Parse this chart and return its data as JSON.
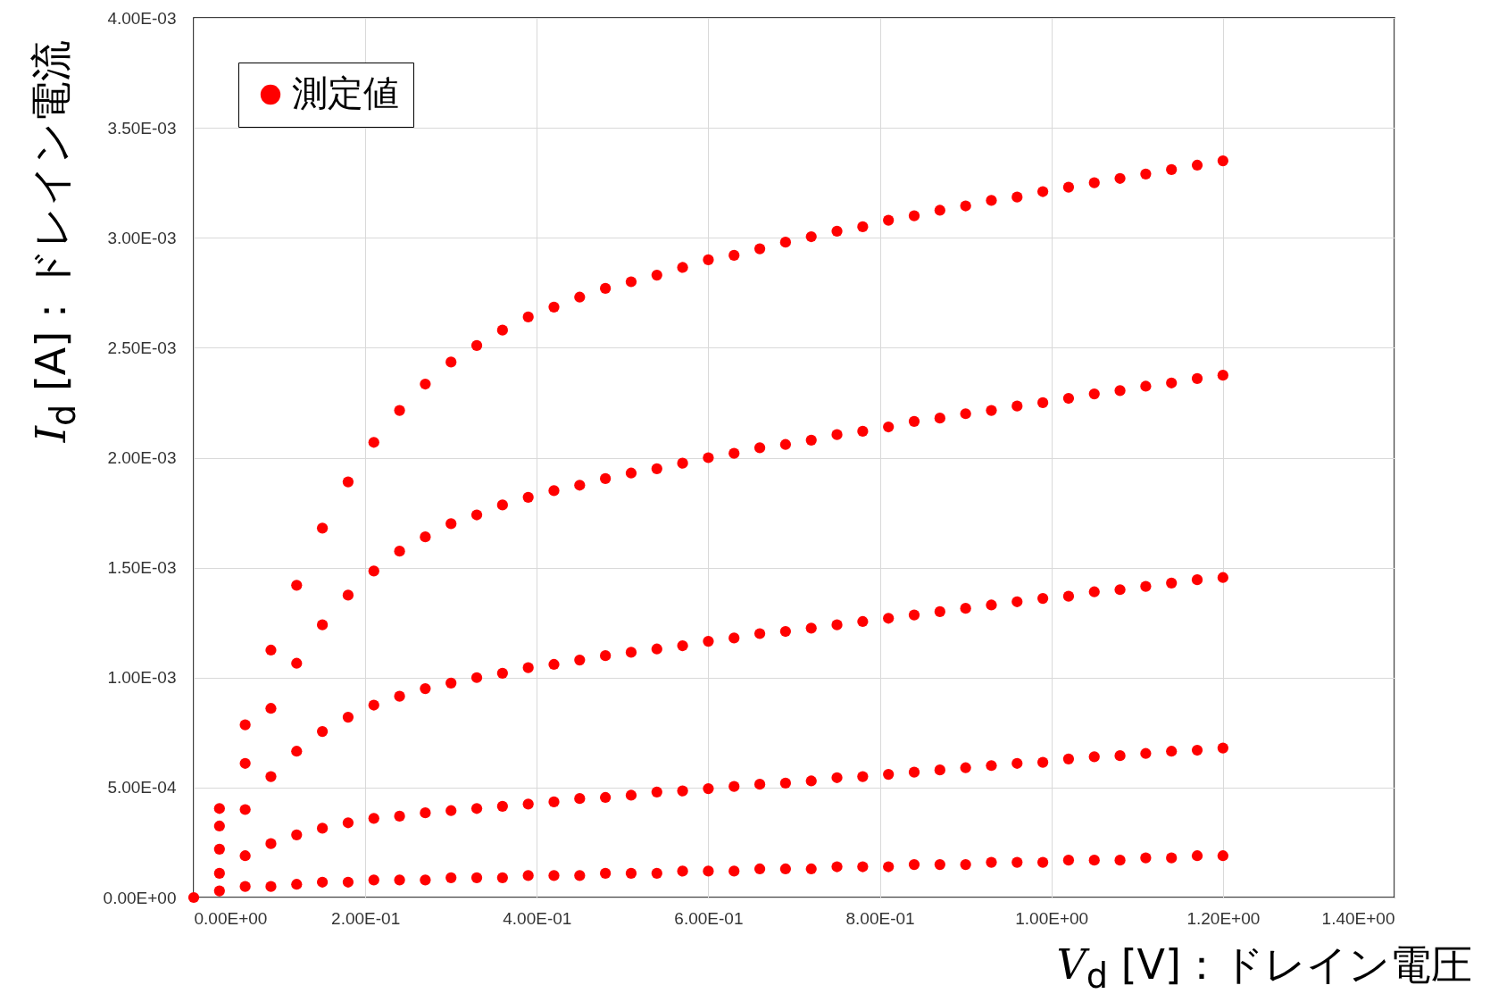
{
  "chart_data": {
    "type": "scatter",
    "xlabel": "V$_{d}$ [V]：ドレイン電圧",
    "ylabel": "I$_{d}$ [A]：ドレイン電流",
    "xlim": [
      0,
      1.4
    ],
    "ylim": [
      0,
      0.004
    ],
    "xticks": [
      {
        "value": 0,
        "label": "0.00E+00"
      },
      {
        "value": 0.2,
        "label": "2.00E-01"
      },
      {
        "value": 0.4,
        "label": "4.00E-01"
      },
      {
        "value": 0.6,
        "label": "6.00E-01"
      },
      {
        "value": 0.8,
        "label": "8.00E-01"
      },
      {
        "value": 1.0,
        "label": "1.00E+00"
      },
      {
        "value": 1.2,
        "label": "1.20E+00"
      },
      {
        "value": 1.4,
        "label": "1.40E+00"
      }
    ],
    "yticks": [
      {
        "value": 0,
        "label": "0.00E+00"
      },
      {
        "value": 0.0005,
        "label": "5.00E-04"
      },
      {
        "value": 0.001,
        "label": "1.00E-03"
      },
      {
        "value": 0.0015,
        "label": "1.50E-03"
      },
      {
        "value": 0.002,
        "label": "2.00E-03"
      },
      {
        "value": 0.0025,
        "label": "2.50E-03"
      },
      {
        "value": 0.003,
        "label": "3.00E-03"
      },
      {
        "value": 0.0035,
        "label": "3.50E-03"
      },
      {
        "value": 0.004,
        "label": "4.00E-03"
      }
    ],
    "grid": true,
    "legend": "top left",
    "marker": "circle",
    "series": [
      {
        "name": "測定値",
        "color": "#ff0000",
        "x": [
          0,
          0.03,
          0.06,
          0.09,
          0.12,
          0.15,
          0.18,
          0.21,
          0.24,
          0.27,
          0.3,
          0.33,
          0.36,
          0.39,
          0.42,
          0.45,
          0.48,
          0.51,
          0.54,
          0.57,
          0.6,
          0.63,
          0.66,
          0.69,
          0.72,
          0.75,
          0.78,
          0.81,
          0.84,
          0.87,
          0.9,
          0.93,
          0.96,
          0.99,
          1.02,
          1.05,
          1.08,
          1.11,
          1.14,
          1.17,
          1.2,
          0.03,
          0.06,
          0.09,
          0.12,
          0.15,
          0.18,
          0.21,
          0.24,
          0.27,
          0.3,
          0.33,
          0.36,
          0.39,
          0.42,
          0.45,
          0.48,
          0.51,
          0.54,
          0.57,
          0.6,
          0.63,
          0.66,
          0.69,
          0.72,
          0.75,
          0.78,
          0.81,
          0.84,
          0.87,
          0.9,
          0.93,
          0.96,
          0.99,
          1.02,
          1.05,
          1.08,
          1.11,
          1.14,
          1.17,
          1.2,
          0.03,
          0.06,
          0.09,
          0.12,
          0.15,
          0.18,
          0.21,
          0.24,
          0.27,
          0.3,
          0.33,
          0.36,
          0.39,
          0.42,
          0.45,
          0.48,
          0.51,
          0.54,
          0.57,
          0.6,
          0.63,
          0.66,
          0.69,
          0.72,
          0.75,
          0.78,
          0.81,
          0.84,
          0.87,
          0.9,
          0.93,
          0.96,
          0.99,
          1.02,
          1.05,
          1.08,
          1.11,
          1.14,
          1.17,
          1.2,
          0.03,
          0.06,
          0.09,
          0.12,
          0.15,
          0.18,
          0.21,
          0.24,
          0.27,
          0.3,
          0.33,
          0.36,
          0.39,
          0.42,
          0.45,
          0.48,
          0.51,
          0.54,
          0.57,
          0.6,
          0.63,
          0.66,
          0.69,
          0.72,
          0.75,
          0.78,
          0.81,
          0.84,
          0.87,
          0.9,
          0.93,
          0.96,
          0.99,
          1.02,
          1.05,
          1.08,
          1.11,
          1.14,
          1.17,
          1.2,
          0.03,
          0.06,
          0.09,
          0.12,
          0.15,
          0.18,
          0.21,
          0.24,
          0.27,
          0.3,
          0.33,
          0.36,
          0.39,
          0.42,
          0.45,
          0.48,
          0.51,
          0.54,
          0.57,
          0.6,
          0.63,
          0.66,
          0.69,
          0.72,
          0.75,
          0.78,
          0.81,
          0.84,
          0.87,
          0.9,
          0.93,
          0.96,
          0.99,
          1.02,
          1.05,
          1.08,
          1.11,
          1.14,
          1.17,
          1.2
        ],
        "values": [
          0,
          0.000405,
          0.000785,
          0.001125,
          0.00142,
          0.00168,
          0.00189,
          0.00207,
          0.002215,
          0.002335,
          0.002435,
          0.00251,
          0.00258,
          0.00264,
          0.002685,
          0.00273,
          0.00277,
          0.0028,
          0.00283,
          0.002865,
          0.0029,
          0.00292,
          0.00295,
          0.00298,
          0.003005,
          0.00303,
          0.00305,
          0.00308,
          0.0031,
          0.003125,
          0.003145,
          0.00317,
          0.003185,
          0.00321,
          0.00323,
          0.00325,
          0.00327,
          0.00329,
          0.00331,
          0.00333,
          0.00335,
          0.000325,
          0.00061,
          0.00086,
          0.001065,
          0.00124,
          0.001375,
          0.001485,
          0.001575,
          0.00164,
          0.0017,
          0.00174,
          0.001785,
          0.00182,
          0.00185,
          0.001875,
          0.001905,
          0.00193,
          0.00195,
          0.001975,
          0.002,
          0.00202,
          0.002045,
          0.00206,
          0.00208,
          0.002105,
          0.00212,
          0.00214,
          0.002165,
          0.00218,
          0.0022,
          0.002215,
          0.002235,
          0.00225,
          0.00227,
          0.00229,
          0.002305,
          0.002325,
          0.00234,
          0.00236,
          0.002375,
          0.00022,
          0.0004,
          0.00055,
          0.000665,
          0.000755,
          0.00082,
          0.000875,
          0.000915,
          0.00095,
          0.000975,
          0.001,
          0.00102,
          0.001045,
          0.00106,
          0.00108,
          0.0011,
          0.001115,
          0.00113,
          0.001145,
          0.001165,
          0.00118,
          0.0012,
          0.00121,
          0.001225,
          0.00124,
          0.001255,
          0.00127,
          0.001285,
          0.0013,
          0.001315,
          0.00133,
          0.001345,
          0.00136,
          0.00137,
          0.00139,
          0.0014,
          0.001415,
          0.00143,
          0.001445,
          0.001455,
          0.00011,
          0.00019,
          0.000245,
          0.000285,
          0.000315,
          0.00034,
          0.00036,
          0.00037,
          0.000385,
          0.000395,
          0.000405,
          0.000415,
          0.000425,
          0.000435,
          0.00045,
          0.000455,
          0.000465,
          0.00048,
          0.000485,
          0.000495,
          0.000505,
          0.000515,
          0.00052,
          0.00053,
          0.000545,
          0.00055,
          0.00056,
          0.00057,
          0.00058,
          0.00059,
          0.0006,
          0.00061,
          0.000615,
          0.00063,
          0.00064,
          0.000645,
          0.000655,
          0.000665,
          0.00067,
          0.00068,
          3e-05,
          5e-05,
          5e-05,
          6e-05,
          7e-05,
          7e-05,
          8e-05,
          8e-05,
          8e-05,
          9e-05,
          9e-05,
          9e-05,
          0.0001,
          0.0001,
          0.0001,
          0.00011,
          0.00011,
          0.00011,
          0.00012,
          0.00012,
          0.00012,
          0.00013,
          0.00013,
          0.00013,
          0.00014,
          0.00014,
          0.00014,
          0.00015,
          0.00015,
          0.00015,
          0.00016,
          0.00016,
          0.00016,
          0.00017,
          0.00017,
          0.00017,
          0.00018,
          0.00018,
          0.00019,
          0.00019
        ]
      }
    ]
  }
}
